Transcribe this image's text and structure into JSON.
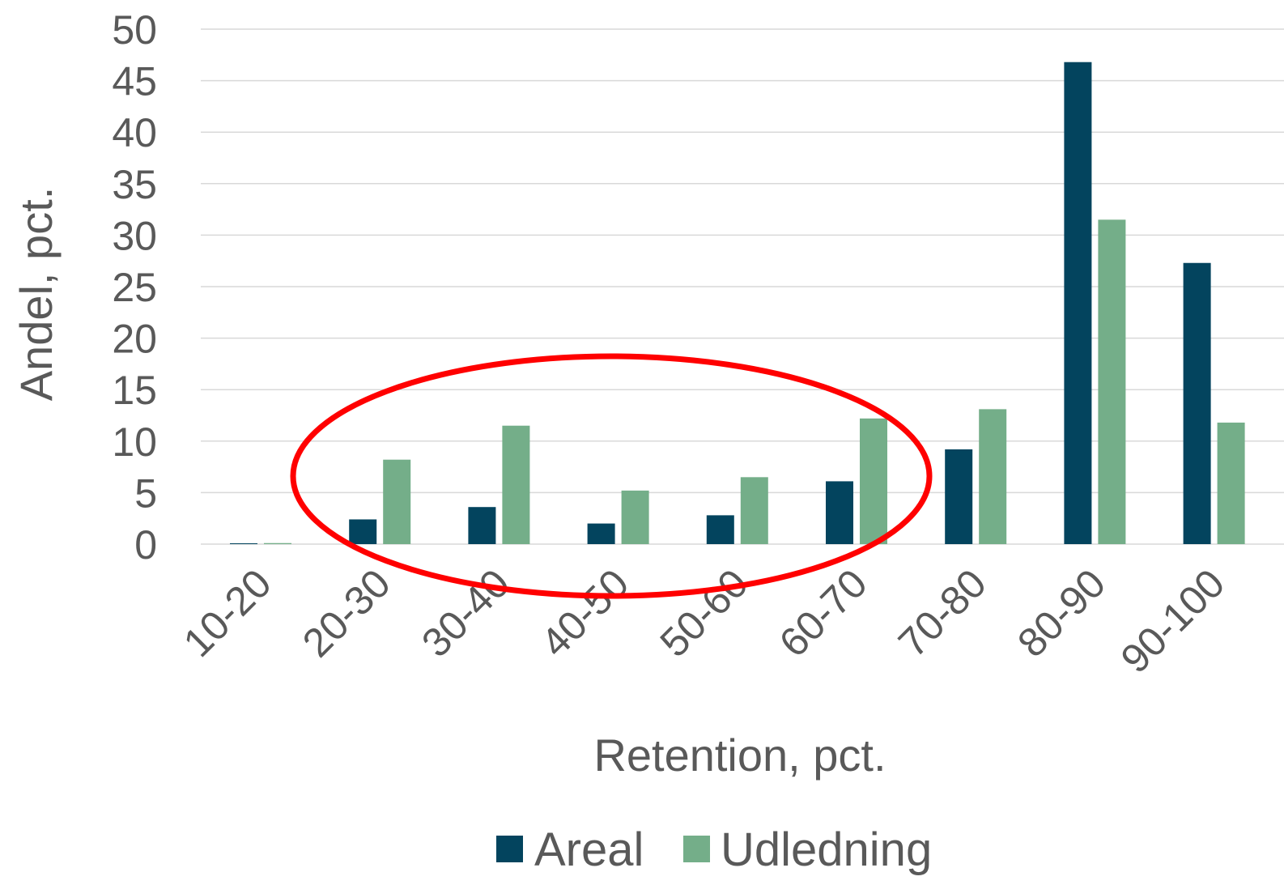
{
  "chart_data": {
    "type": "bar",
    "categories": [
      "10-20",
      "20-30",
      "30-40",
      "40-50",
      "50-60",
      "60-70",
      "70-80",
      "80-90",
      "90-100"
    ],
    "series": [
      {
        "name": "Areal",
        "color": "#03445e",
        "values": [
          0,
          2.4,
          3.6,
          2.0,
          2.8,
          6.1,
          9.2,
          46.8,
          27.3
        ]
      },
      {
        "name": "Udledning",
        "color": "#74ae89",
        "values": [
          0.1,
          8.2,
          11.5,
          5.2,
          6.5,
          12.2,
          13.1,
          31.5,
          11.8
        ]
      }
    ],
    "xlabel": "Retention, pct.",
    "ylabel": "Andel, pct.",
    "ylim": [
      0,
      50
    ],
    "yticks": [
      0,
      5,
      10,
      15,
      20,
      25,
      30,
      35,
      40,
      45,
      50
    ],
    "grid": true,
    "legend_position": "bottom",
    "annotation": {
      "shape": "ellipse",
      "color": "#ff0000",
      "highlights": [
        "20-30",
        "30-40",
        "40-50",
        "50-60",
        "60-70"
      ]
    }
  }
}
